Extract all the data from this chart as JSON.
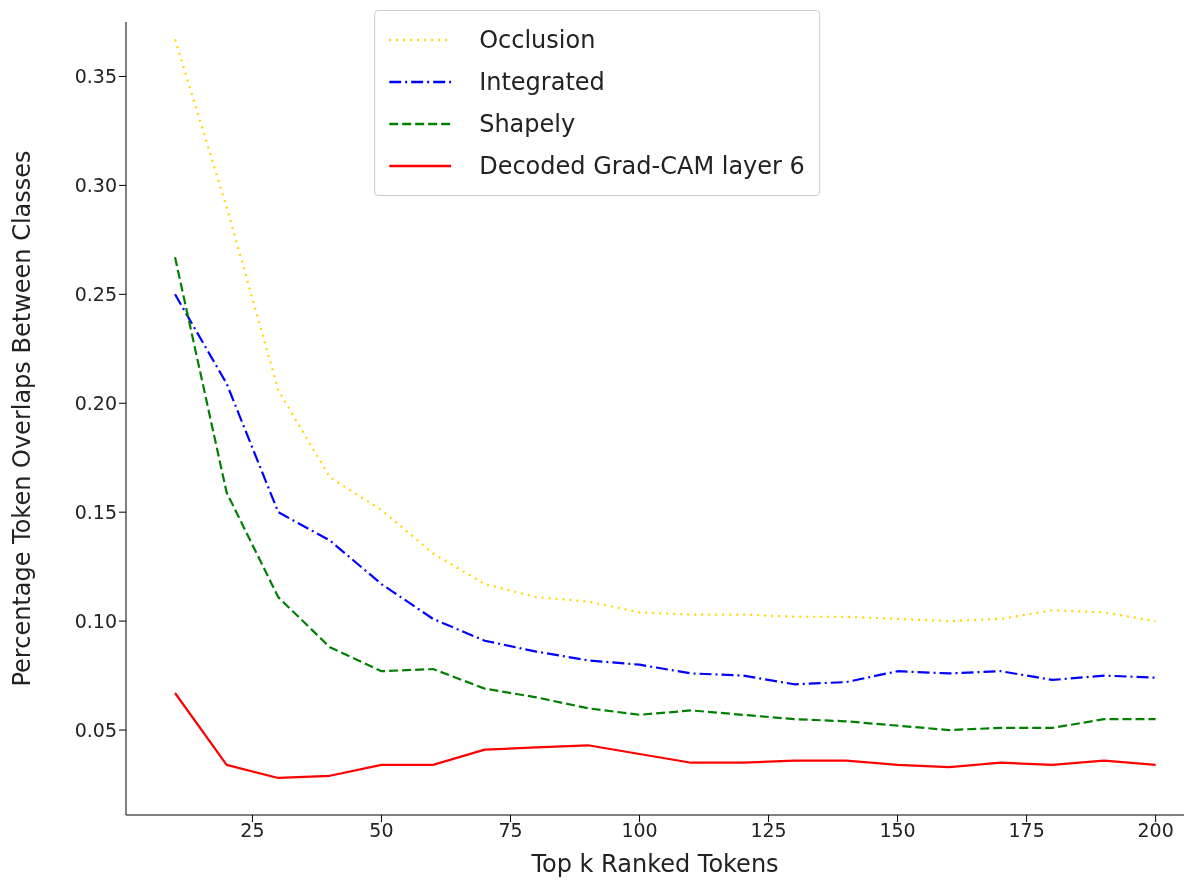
{
  "chart_data": {
    "type": "line",
    "xlabel": "Top k Ranked Tokens",
    "ylabel": "Percentage Token Overlaps Between Classes",
    "x": [
      10,
      20,
      30,
      40,
      50,
      60,
      70,
      80,
      90,
      100,
      110,
      120,
      130,
      140,
      150,
      160,
      170,
      180,
      190,
      200
    ],
    "xlim": [
      0.5,
      205.5
    ],
    "xticks": [
      25,
      50,
      75,
      100,
      125,
      150,
      175,
      200
    ],
    "ylim": [
      0.011,
      0.375
    ],
    "yticks": [
      0.05,
      {
        "value": 0.1,
        "label": "0.10"
      },
      0.15,
      {
        "value": 0.2,
        "label": "0.20"
      },
      0.25,
      {
        "value": 0.3,
        "label": "0.30"
      },
      0.35
    ],
    "grid": false,
    "legend": "top",
    "marker": "none",
    "series": [
      {
        "name": "Occlusion",
        "color": "#ffd700",
        "line_style": "dotted",
        "values": [
          0.367,
          0.29,
          0.206,
          0.166,
          0.151,
          0.131,
          0.117,
          0.111,
          0.109,
          0.104,
          0.103,
          0.103,
          0.102,
          0.102,
          0.101,
          0.1,
          0.101,
          0.105,
          0.104,
          0.1
        ]
      },
      {
        "name": "Integrated",
        "color": "#0000ff",
        "line_style": "dashdot",
        "values": [
          0.25,
          0.209,
          0.15,
          0.137,
          0.117,
          0.101,
          0.091,
          0.086,
          0.082,
          0.08,
          0.076,
          0.075,
          0.071,
          0.072,
          0.077,
          0.076,
          0.077,
          0.073,
          0.075,
          0.074
        ]
      },
      {
        "name": "Shapely",
        "color": "#008000",
        "line_style": "dashed",
        "values": [
          0.267,
          0.159,
          0.111,
          0.088,
          0.077,
          0.078,
          0.069,
          0.065,
          0.06,
          0.057,
          0.059,
          0.057,
          0.055,
          0.054,
          0.052,
          0.05,
          0.051,
          0.051,
          0.055,
          0.055
        ]
      },
      {
        "name": "Decoded Grad-CAM layer 6",
        "color": "#ff0000",
        "line_style": "solid",
        "values": [
          0.067,
          0.034,
          0.028,
          0.029,
          0.034,
          0.034,
          0.041,
          0.042,
          0.043,
          0.039,
          0.035,
          0.035,
          0.036,
          0.036,
          0.034,
          0.033,
          0.035,
          0.034,
          0.036,
          0.034
        ]
      }
    ]
  }
}
